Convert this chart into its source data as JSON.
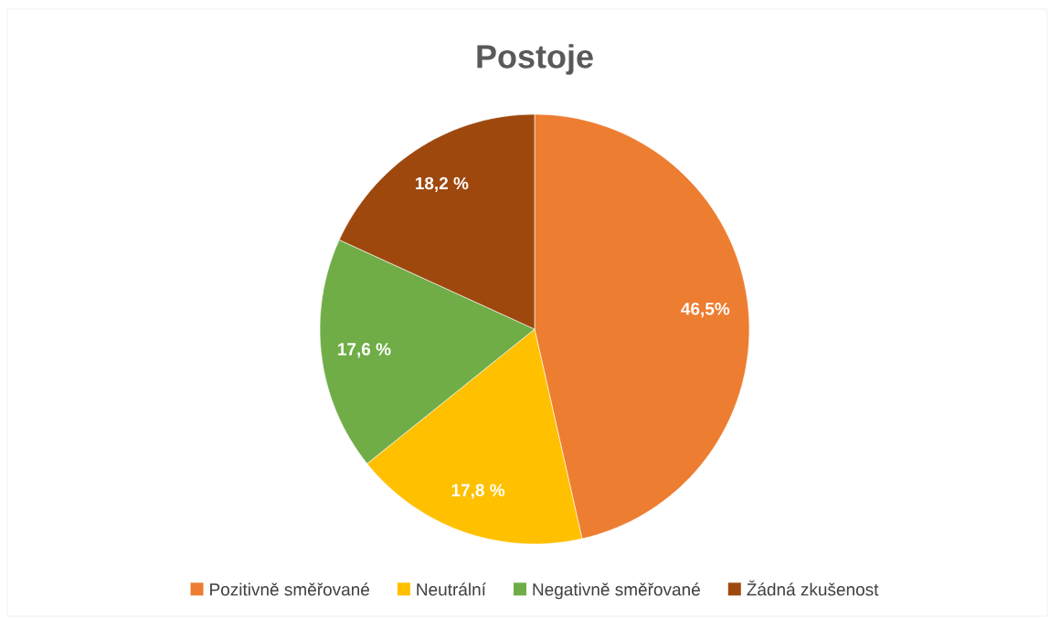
{
  "chart_data": {
    "type": "pie",
    "title": "Postoje",
    "categories": [
      "Pozitivně směřované",
      "Neutrální",
      "Negativně směřované",
      "Žádná zkušenost"
    ],
    "values": [
      46.5,
      17.8,
      17.6,
      18.2
    ],
    "colors": [
      "#ed7d31",
      "#ffc000",
      "#70ad47",
      "#9e480e"
    ],
    "value_labels": [
      "46,5%",
      "17,8 %",
      "17,6 %",
      "18,2 %"
    ],
    "legend": "bottom"
  }
}
